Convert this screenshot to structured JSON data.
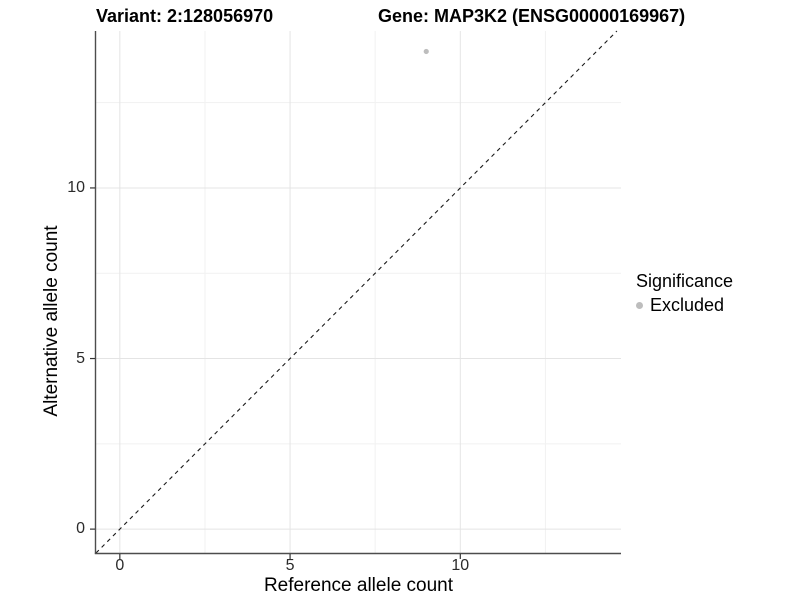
{
  "titles": {
    "variant": "Variant: 2:128056970",
    "gene": "Gene: MAP3K2 (ENSG00000169967)"
  },
  "axes": {
    "x_label": "Reference allele count",
    "y_label": "Alternative allele count"
  },
  "legend": {
    "title": "Significance",
    "items": [
      {
        "label": "Excluded",
        "color": "#bdbdbd"
      }
    ]
  },
  "colors": {
    "background": "#ffffff",
    "grid_major": "#e4e4e4",
    "grid_minor": "#f1f1f1",
    "axis_line": "#4d4d4d",
    "tick_mark": "#333333",
    "reference_line": "#1a1a1a",
    "point": "#bdbdbd"
  },
  "chart_data": {
    "type": "scatter",
    "title": "Variant: 2:128056970    Gene: MAP3K2 (ENSG00000169967)",
    "xlabel": "Reference allele count",
    "ylabel": "Alternative allele count",
    "series": [
      {
        "name": "Excluded",
        "color": "#bdbdbd",
        "points": [
          {
            "x": 9,
            "y": 14
          }
        ]
      }
    ],
    "reference_line": {
      "kind": "identity",
      "slope": 1,
      "intercept": 0,
      "style": "dashed",
      "color": "#1a1a1a"
    },
    "x_ticks": [
      0,
      5,
      10
    ],
    "y_ticks": [
      0,
      5,
      10
    ],
    "x_tick_labels": [
      "0",
      "5",
      "10"
    ],
    "y_tick_labels": [
      "0",
      "5",
      "10"
    ],
    "x_minor_ticks": [
      2.5,
      7.5,
      12.5
    ],
    "y_minor_ticks": [
      2.5,
      7.5,
      12.5
    ],
    "xlim": [
      -0.7,
      14.72
    ],
    "ylim": [
      -0.7,
      14.6
    ],
    "grid": true,
    "legend_position": "right",
    "legend_title": "Significance"
  }
}
